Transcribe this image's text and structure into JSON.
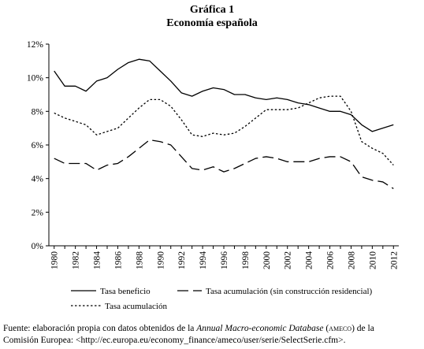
{
  "header": {
    "number": "Gráfica 1",
    "title": "Economía española"
  },
  "chart_data": {
    "type": "line",
    "x": [
      1980,
      1981,
      1982,
      1983,
      1984,
      1985,
      1986,
      1987,
      1988,
      1989,
      1990,
      1991,
      1992,
      1993,
      1994,
      1995,
      1996,
      1997,
      1998,
      1999,
      2000,
      2001,
      2002,
      2003,
      2004,
      2005,
      2006,
      2007,
      2008,
      2009,
      2010,
      2011,
      2012
    ],
    "xticks": [
      "1980",
      "1982",
      "1984",
      "1986",
      "1988",
      "1990",
      "1992",
      "1994",
      "1996",
      "1998",
      "2000",
      "2002",
      "2004",
      "2006",
      "2008",
      "2010",
      "2012"
    ],
    "yticks": [
      "0%",
      "2%",
      "4%",
      "6%",
      "8%",
      "10%",
      "12%"
    ],
    "ylim": [
      0,
      12
    ],
    "grid": false,
    "legend_position": "bottom",
    "series": [
      {
        "name": "Tasa beneficio",
        "style": "solid",
        "values": [
          10.4,
          9.5,
          9.5,
          9.2,
          9.8,
          10.0,
          10.5,
          10.9,
          11.1,
          11.0,
          10.4,
          9.8,
          9.1,
          8.9,
          9.2,
          9.4,
          9.3,
          9.0,
          9.0,
          8.8,
          8.7,
          8.8,
          8.7,
          8.5,
          8.4,
          8.2,
          8.0,
          8.0,
          7.8,
          7.2,
          6.8,
          7.0,
          7.2
        ]
      },
      {
        "name": "Tasa acumulación (sin construcción residencial)",
        "style": "longdash",
        "values": [
          5.2,
          4.9,
          4.9,
          4.9,
          4.5,
          4.8,
          4.9,
          5.3,
          5.8,
          6.3,
          6.2,
          6.0,
          5.3,
          4.6,
          4.5,
          4.7,
          4.4,
          4.6,
          4.9,
          5.2,
          5.3,
          5.2,
          5.0,
          5.0,
          5.0,
          5.2,
          5.3,
          5.3,
          5.0,
          4.1,
          3.9,
          3.8,
          3.4
        ]
      },
      {
        "name": "Tasa acumulación",
        "style": "dotted",
        "values": [
          7.9,
          7.6,
          7.4,
          7.2,
          6.6,
          6.8,
          7.0,
          7.6,
          8.2,
          8.7,
          8.7,
          8.3,
          7.5,
          6.6,
          6.5,
          6.7,
          6.6,
          6.7,
          7.1,
          7.6,
          8.1,
          8.1,
          8.1,
          8.2,
          8.5,
          8.8,
          8.9,
          8.9,
          8.0,
          6.2,
          5.8,
          5.5,
          4.8
        ]
      }
    ]
  },
  "source": {
    "prefix": "Fuente: elaboración propia con datos obtenidos de la ",
    "database": "Annual Macro-economic Database",
    "middle": " (",
    "acronym": "ameco",
    "suffix": ") de la",
    "line2": "Comisión Europea: <http://ec.europa.eu/economy_finance/ameco/user/serie/SelectSerie.cfm>."
  }
}
